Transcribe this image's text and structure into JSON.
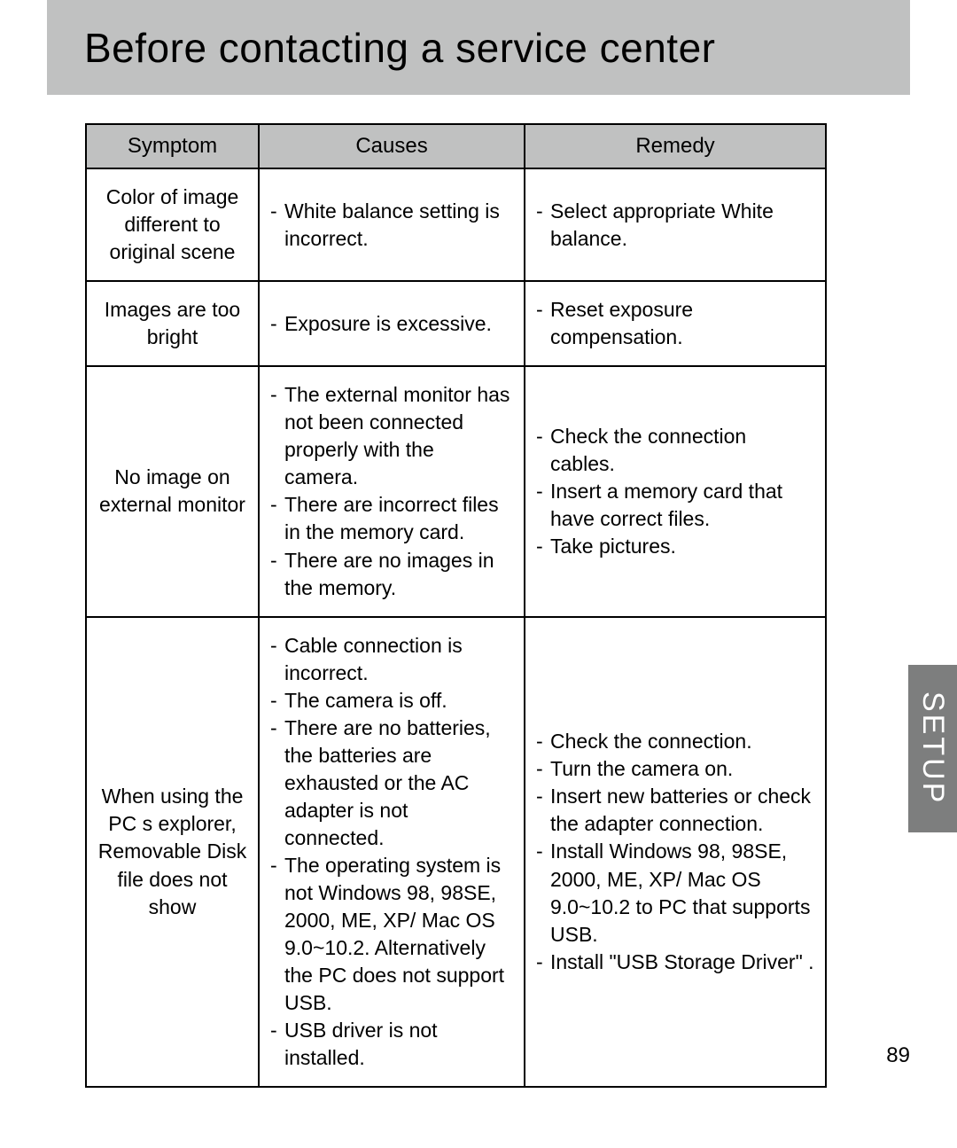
{
  "page": {
    "title": "Before contacting a service center",
    "side_tab": "SETUP",
    "page_number": "89",
    "colors": {
      "band_bg": "#c0c1c1",
      "header_bg": "#c0c1c1",
      "border": "#000000",
      "side_tab_bg": "#7d7e7e",
      "side_tab_text": "#ffffff",
      "page_bg": "#ffffff",
      "text": "#000000"
    }
  },
  "table": {
    "headers": {
      "symptom": "Symptom",
      "causes": "Causes",
      "remedy": "Remedy"
    },
    "rows": [
      {
        "symptom": "Color of image different to original scene",
        "causes": [
          "White balance setting is incorrect."
        ],
        "remedy": [
          "Select appropriate White balance."
        ]
      },
      {
        "symptom": "Images are too bright",
        "causes": [
          "Exposure is excessive."
        ],
        "remedy": [
          "Reset exposure compensation."
        ]
      },
      {
        "symptom": "No image on external monitor",
        "causes": [
          "The external monitor has not been connected properly with the camera.",
          "There are incorrect files in the memory card.",
          "There are no images in the memory."
        ],
        "remedy": [
          "Check the connection cables.",
          "Insert a memory card that have correct files.",
          "Take pictures."
        ]
      },
      {
        "symptom": "When using the PC s explorer, Removable Disk file does not show",
        "causes": [
          "Cable connection is incorrect.",
          "The camera is off.",
          "There are no batteries, the batteries are exhausted or the AC adapter is not connected.",
          "The operating system is not Windows 98, 98SE, 2000, ME, XP/ Mac OS 9.0~10.2. Alternatively the PC does not support USB.",
          "USB driver is not installed."
        ],
        "remedy": [
          "Check the connection.",
          "Turn the camera on.",
          "Insert new batteries or check the adapter connection.",
          "Install Windows 98, 98SE, 2000, ME, XP/ Mac OS 9.0~10.2 to PC that supports USB.",
          "Install \"USB Storage Driver\" ."
        ]
      }
    ]
  }
}
